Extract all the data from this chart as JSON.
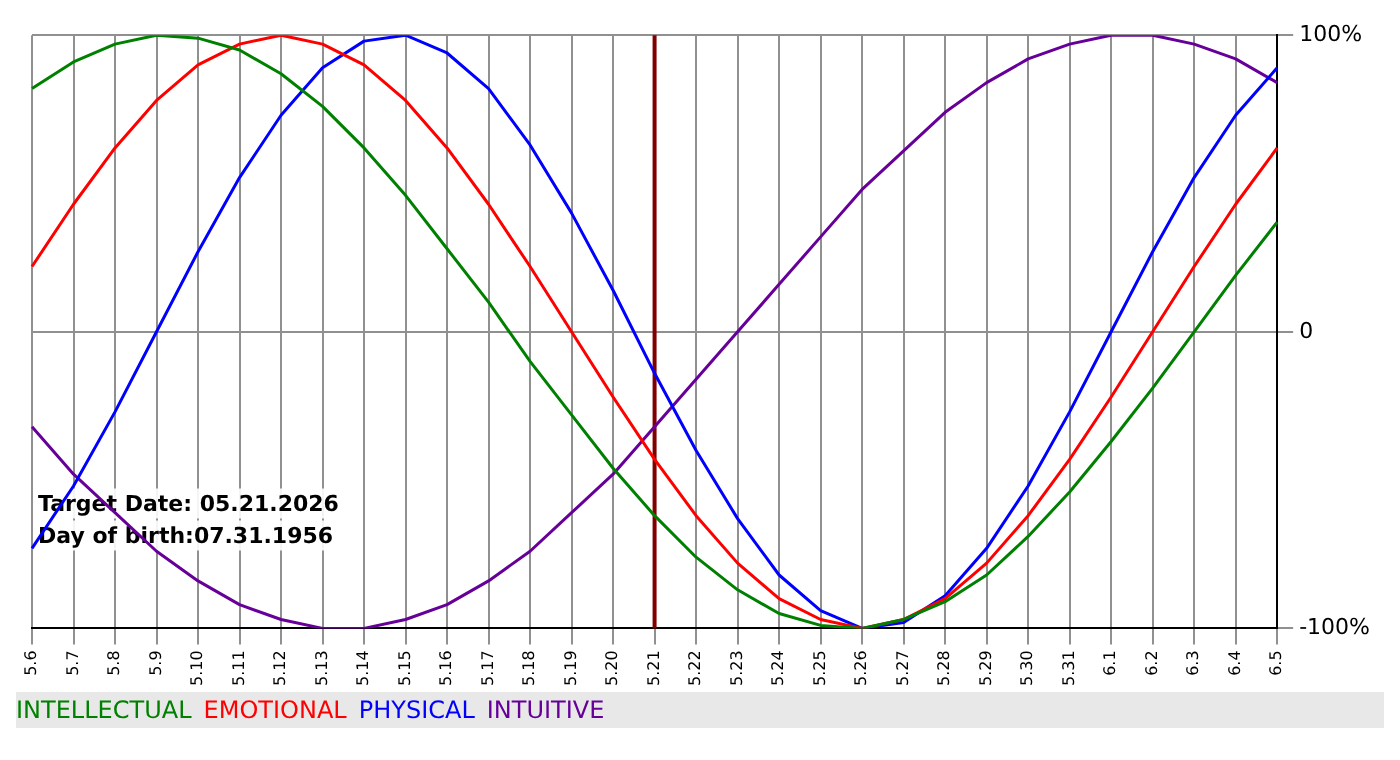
{
  "chart_data": {
    "type": "line",
    "categories": [
      "5.6",
      "5.7",
      "5.8",
      "5.9",
      "5.10",
      "5.11",
      "5.12",
      "5.13",
      "5.14",
      "5.15",
      "5.16",
      "5.17",
      "5.18",
      "5.19",
      "5.20",
      "5.21",
      "5.22",
      "5.23",
      "5.24",
      "5.25",
      "5.26",
      "5.27",
      "5.28",
      "5.29",
      "5.30",
      "5.31",
      "6.1",
      "6.2",
      "6.3",
      "6.4",
      "6.5"
    ],
    "series": [
      {
        "name": "INTELLECTUAL",
        "color": "#008000",
        "values": [
          82,
          91,
          97,
          100,
          99,
          95,
          87,
          76,
          62,
          46,
          28,
          10,
          -10,
          -28,
          -46,
          -62,
          -76,
          -87,
          -95,
          -99,
          -100,
          -97,
          -91,
          -82,
          -69,
          -54,
          -37,
          -19,
          0,
          19,
          37
        ]
      },
      {
        "name": "EMOTIONAL",
        "color": "#ff0000",
        "values": [
          22,
          43,
          62,
          78,
          90,
          97,
          100,
          97,
          90,
          78,
          62,
          43,
          22,
          0,
          -22,
          -43,
          -62,
          -78,
          -90,
          -97,
          -100,
          -97,
          -90,
          -78,
          -62,
          -43,
          -22,
          0,
          22,
          43,
          62
        ]
      },
      {
        "name": "PHYSICAL",
        "color": "#0000ff",
        "values": [
          -73,
          -52,
          -27,
          0,
          27,
          52,
          73,
          89,
          98,
          100,
          94,
          82,
          63,
          40,
          14,
          -14,
          -40,
          -63,
          -82,
          -94,
          -100,
          -98,
          -89,
          -73,
          -52,
          -27,
          0,
          27,
          52,
          73,
          89
        ]
      },
      {
        "name": "INTUITIVE",
        "color": "#660099",
        "values": [
          -32,
          -48,
          -61,
          -74,
          -84,
          -92,
          -97,
          -100,
          -100,
          -97,
          -92,
          -84,
          -74,
          -61,
          -48,
          -32,
          -16,
          0,
          16,
          32,
          48,
          61,
          74,
          84,
          92,
          97,
          100,
          100,
          97,
          92,
          84
        ]
      }
    ],
    "ylim": [
      -100,
      100
    ],
    "yticks": [
      {
        "value": 100,
        "label": "100%"
      },
      0,
      {
        "value": -100,
        "label": "-100%"
      }
    ],
    "ref_lines": [
      {
        "axis": "x",
        "value": "5.21",
        "color": "#800000"
      }
    ],
    "annotations": [
      "Target Date: 05.21.2026",
      "Day of birth:07.31.1956"
    ],
    "grid": true,
    "legend": "bottom",
    "marker": "none",
    "line_style": "solid"
  }
}
